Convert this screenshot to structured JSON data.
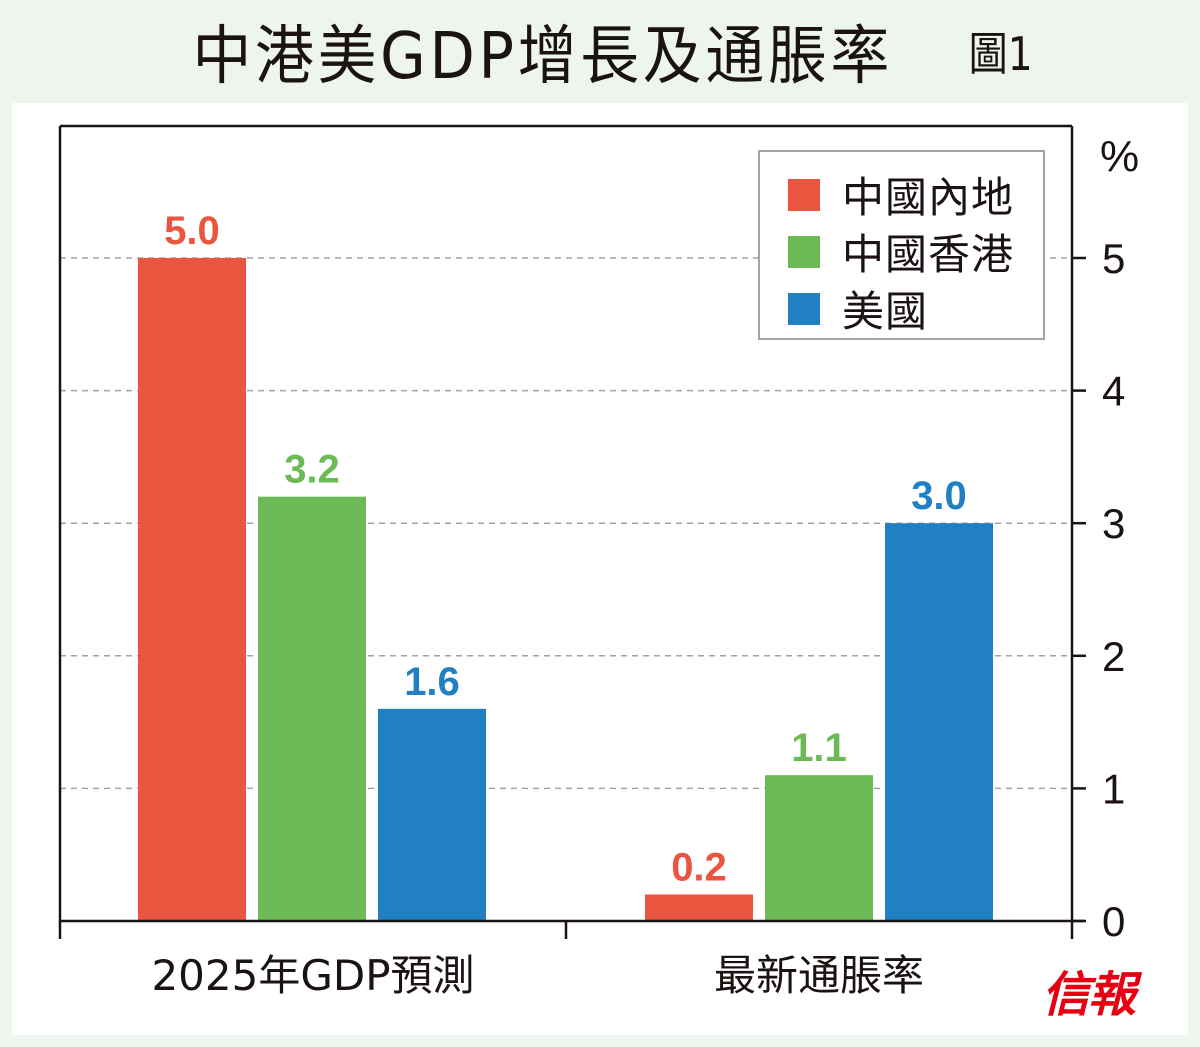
{
  "header": {
    "title": "中港美GDP增長及通脹率",
    "figure_label": "圖1"
  },
  "logo_text": "信報",
  "colors": {
    "china": "#e9553f",
    "hongkong": "#6cba56",
    "usa": "#2180c3",
    "background": "#eef5ee",
    "axis": "#1a1311",
    "grid": "#a3a3a3"
  },
  "chart_data": {
    "type": "bar",
    "title": "中港美GDP增長及通脹率",
    "xlabel": "",
    "ylabel": "%",
    "ylim": [
      0,
      6
    ],
    "yticks": [
      0,
      1,
      2,
      3,
      4,
      5
    ],
    "ytick_labels": [
      "0",
      "1",
      "2",
      "3",
      "4",
      "5"
    ],
    "grid": true,
    "y_axis_side": "right",
    "legend_position": "top-right",
    "categories": [
      "2025年GDP預測",
      "最新通脹率"
    ],
    "series": [
      {
        "name": "中國內地",
        "color": "#e9553f",
        "values": [
          5.0,
          0.2
        ],
        "labels": [
          "5.0",
          "0.2"
        ]
      },
      {
        "name": "中國香港",
        "color": "#6cba56",
        "values": [
          3.2,
          1.1
        ],
        "labels": [
          "3.2",
          "1.1"
        ]
      },
      {
        "name": "美國",
        "color": "#2180c3",
        "values": [
          1.6,
          3.0
        ],
        "labels": [
          "1.6",
          "3.0"
        ]
      }
    ]
  }
}
